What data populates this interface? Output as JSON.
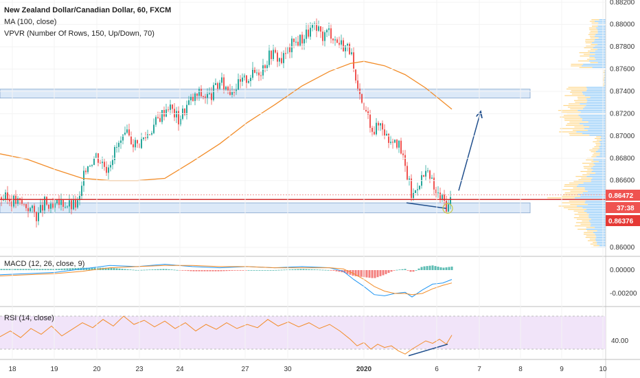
{
  "header": {
    "title": "New Zealand Dollar/Canadian Dollar, 60, FXCM",
    "ma_label": "MA (100, close)",
    "vpvr_label": "VPVR (Number Of Rows, 150, Up/Down, 70)"
  },
  "indicators": {
    "macd_label": "MACD (12, 26, close, 9)",
    "rsi_label": "RSI (14, close)"
  },
  "price_tags": {
    "last": "0.86472",
    "countdown": "37:38",
    "low": "0.86376"
  },
  "colors": {
    "up": "#26a69a",
    "down": "#ef5350",
    "ma": "#f28c28",
    "macd": "#2196f3",
    "signal": "#f28c28",
    "rsi": "#f28c28",
    "zone": "#d6e6f7",
    "support": "#d32f2f",
    "arrow": "#1f4e8c",
    "vol_up": "#64b5f6",
    "vol_down": "#ffcc66"
  },
  "chart_data": {
    "type": "candlestick",
    "title": "New Zealand Dollar/Canadian Dollar, 60, FXCM",
    "x_ticks": [
      "18",
      "19",
      "20",
      "23",
      "24",
      "27",
      "30",
      "2020",
      "6",
      "7",
      "8",
      "9",
      "10"
    ],
    "y_ticks": [
      "0.88200",
      "0.88000",
      "0.87800",
      "0.87600",
      "0.87400",
      "0.87200",
      "0.87000",
      "0.86800",
      "0.86600",
      "0.86000"
    ],
    "ylim": [
      0.86,
      0.8822
    ],
    "macd_ticks": [
      "0.00000",
      "-0.00200"
    ],
    "rsi_ticks": [
      "40.00"
    ],
    "price_path": [
      [
        0,
        0.8645
      ],
      [
        20,
        0.8642
      ],
      [
        40,
        0.8637
      ],
      [
        55,
        0.8628
      ],
      [
        65,
        0.864
      ],
      [
        75,
        0.8633
      ],
      [
        90,
        0.8641
      ],
      [
        105,
        0.8637
      ],
      [
        115,
        0.864
      ],
      [
        125,
        0.8673
      ],
      [
        140,
        0.8683
      ],
      [
        155,
        0.8672
      ],
      [
        170,
        0.869
      ],
      [
        185,
        0.87
      ],
      [
        200,
        0.8692
      ],
      [
        215,
        0.8702
      ],
      [
        230,
        0.8715
      ],
      [
        245,
        0.8728
      ],
      [
        260,
        0.8715
      ],
      [
        275,
        0.873
      ],
      [
        290,
        0.8738
      ],
      [
        305,
        0.8735
      ],
      [
        320,
        0.8748
      ],
      [
        335,
        0.8742
      ],
      [
        350,
        0.8747
      ],
      [
        365,
        0.8755
      ],
      [
        380,
        0.876
      ],
      [
        395,
        0.8775
      ],
      [
        410,
        0.8768
      ],
      [
        425,
        0.8782
      ],
      [
        440,
        0.8788
      ],
      [
        455,
        0.8797
      ],
      [
        470,
        0.879
      ],
      [
        480,
        0.8795
      ],
      [
        490,
        0.8785
      ],
      [
        500,
        0.8782
      ],
      [
        510,
        0.8778
      ],
      [
        518,
        0.8745
      ],
      [
        525,
        0.873
      ],
      [
        535,
        0.8718
      ],
      [
        545,
        0.8705
      ],
      [
        555,
        0.8713
      ],
      [
        565,
        0.8697
      ],
      [
        575,
        0.87
      ],
      [
        585,
        0.8683
      ],
      [
        595,
        0.866
      ],
      [
        600,
        0.8644
      ],
      [
        610,
        0.866
      ],
      [
        620,
        0.8666
      ],
      [
        628,
        0.866
      ],
      [
        635,
        0.8648
      ],
      [
        645,
        0.8643
      ],
      [
        652,
        0.8636
      ],
      [
        658,
        0.8647
      ]
    ],
    "ma_path": [
      [
        0,
        0.8684
      ],
      [
        40,
        0.8679
      ],
      [
        80,
        0.867
      ],
      [
        120,
        0.8662
      ],
      [
        160,
        0.866
      ],
      [
        200,
        0.866
      ],
      [
        240,
        0.8662
      ],
      [
        280,
        0.8677
      ],
      [
        320,
        0.8693
      ],
      [
        360,
        0.8712
      ],
      [
        400,
        0.8728
      ],
      [
        440,
        0.8745
      ],
      [
        480,
        0.8758
      ],
      [
        510,
        0.8765
      ],
      [
        530,
        0.8767
      ],
      [
        560,
        0.8763
      ],
      [
        590,
        0.8755
      ],
      [
        620,
        0.8743
      ],
      [
        640,
        0.8733
      ],
      [
        658,
        0.8724
      ]
    ],
    "zones": [
      {
        "from": 0.8734,
        "to": 0.8742
      },
      {
        "from": 0.8631,
        "to": 0.864
      }
    ],
    "support_level": 0.8643,
    "last_price": 0.86472,
    "low_price": 0.86376,
    "arrow": {
      "from": [
        668,
        0.8651
      ],
      "to": [
        700,
        0.8722
      ]
    },
    "divergence_price": {
      "from": [
        592,
        0.864
      ],
      "to": [
        650,
        0.8635
      ]
    },
    "divergence_rsi": {
      "from": [
        595,
        22
      ],
      "to": [
        652,
        36
      ]
    },
    "macd_line": [
      [
        0,
        -0.0004
      ],
      [
        40,
        -0.0003
      ],
      [
        80,
        -0.0002
      ],
      [
        120,
        0.0001
      ],
      [
        160,
        0.0004
      ],
      [
        200,
        0.0003
      ],
      [
        240,
        0.0005
      ],
      [
        280,
        0.0003
      ],
      [
        320,
        0.0002
      ],
      [
        360,
        0.0003
      ],
      [
        400,
        0.0002
      ],
      [
        440,
        0.0003
      ],
      [
        480,
        0.0002
      ],
      [
        500,
        -0.0001
      ],
      [
        515,
        -0.0008
      ],
      [
        530,
        -0.0014
      ],
      [
        545,
        -0.0021
      ],
      [
        560,
        -0.0022
      ],
      [
        575,
        -0.002
      ],
      [
        590,
        -0.0019
      ],
      [
        600,
        -0.0023
      ],
      [
        615,
        -0.0017
      ],
      [
        630,
        -0.0012
      ],
      [
        645,
        -0.0011
      ],
      [
        658,
        -0.0008
      ]
    ],
    "signal_line": [
      [
        0,
        -0.0005
      ],
      [
        40,
        -0.0004
      ],
      [
        80,
        -0.0003
      ],
      [
        120,
        -0.0001
      ],
      [
        160,
        0.0002
      ],
      [
        200,
        0.0003
      ],
      [
        240,
        0.0004
      ],
      [
        280,
        0.0004
      ],
      [
        320,
        0.0003
      ],
      [
        360,
        0.0003
      ],
      [
        400,
        0.0002
      ],
      [
        440,
        0.0002
      ],
      [
        480,
        0.0002
      ],
      [
        500,
        0.0001
      ],
      [
        515,
        -0.0003
      ],
      [
        530,
        -0.0008
      ],
      [
        545,
        -0.0014
      ],
      [
        560,
        -0.0018
      ],
      [
        575,
        -0.002
      ],
      [
        590,
        -0.002
      ],
      [
        600,
        -0.0021
      ],
      [
        615,
        -0.002
      ],
      [
        630,
        -0.0016
      ],
      [
        645,
        -0.0013
      ],
      [
        658,
        -0.0011
      ]
    ],
    "rsi_line": [
      [
        0,
        45
      ],
      [
        15,
        52
      ],
      [
        30,
        44
      ],
      [
        45,
        55
      ],
      [
        60,
        48
      ],
      [
        75,
        58
      ],
      [
        90,
        46
      ],
      [
        105,
        54
      ],
      [
        120,
        62
      ],
      [
        135,
        56
      ],
      [
        150,
        66
      ],
      [
        165,
        58
      ],
      [
        180,
        70
      ],
      [
        195,
        60
      ],
      [
        210,
        65
      ],
      [
        225,
        57
      ],
      [
        240,
        64
      ],
      [
        255,
        55
      ],
      [
        270,
        62
      ],
      [
        285,
        52
      ],
      [
        300,
        60
      ],
      [
        315,
        54
      ],
      [
        330,
        62
      ],
      [
        345,
        55
      ],
      [
        360,
        60
      ],
      [
        375,
        56
      ],
      [
        390,
        66
      ],
      [
        405,
        58
      ],
      [
        420,
        63
      ],
      [
        435,
        57
      ],
      [
        450,
        62
      ],
      [
        465,
        55
      ],
      [
        480,
        60
      ],
      [
        495,
        52
      ],
      [
        510,
        42
      ],
      [
        520,
        34
      ],
      [
        530,
        38
      ],
      [
        540,
        30
      ],
      [
        550,
        36
      ],
      [
        560,
        32
      ],
      [
        570,
        34
      ],
      [
        580,
        28
      ],
      [
        590,
        24
      ],
      [
        600,
        30
      ],
      [
        610,
        35
      ],
      [
        620,
        40
      ],
      [
        630,
        37
      ],
      [
        640,
        42
      ],
      [
        650,
        36
      ],
      [
        658,
        47
      ]
    ],
    "rsi_range": [
      20,
      80
    ],
    "rsi_band": [
      30,
      70
    ],
    "macd_range": [
      -0.003,
      0.001
    ]
  }
}
